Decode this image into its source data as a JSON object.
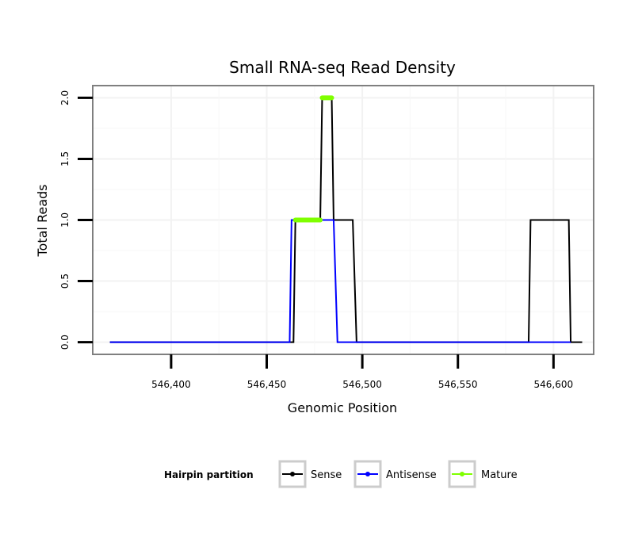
{
  "chart_data": {
    "type": "line",
    "title": "Small RNA-seq Read Density",
    "xlabel": "Genomic Position",
    "ylabel": "Total Reads",
    "xlim": [
      546359,
      546621
    ],
    "ylim": [
      -0.1,
      2.1
    ],
    "x_ticks": [
      546400,
      546450,
      546500,
      546550,
      546600
    ],
    "x_tick_labels": [
      "546,400",
      "546,450",
      "546,500",
      "546,550",
      "546,600"
    ],
    "y_ticks": [
      0.0,
      0.5,
      1.0,
      1.5,
      2.0
    ],
    "y_tick_labels": [
      "0.0",
      "0.5",
      "1.0",
      "1.5",
      "2.0"
    ],
    "grid": true,
    "legend": {
      "position": "bottom",
      "title": "Hairpin partition",
      "entries": [
        "Sense",
        "Antisense",
        "Mature"
      ]
    },
    "series": [
      {
        "name": "Sense",
        "color": "#000000",
        "x": [
          546368,
          546464,
          546465,
          546478,
          546479,
          546484,
          546485,
          546495,
          546497,
          546587,
          546588,
          546608,
          546609,
          546615
        ],
        "y": [
          0,
          0,
          1,
          1,
          2,
          2,
          1,
          1,
          0,
          0,
          1,
          1,
          0,
          0
        ]
      },
      {
        "name": "Antisense",
        "color": "#0000ff",
        "x": [
          546368,
          546462,
          546463,
          546485,
          546487,
          546609
        ],
        "y": [
          0,
          0,
          1,
          1,
          0,
          0
        ]
      },
      {
        "name": "Mature",
        "color": "#7fff00",
        "segments": [
          {
            "x": [
              546465,
              546478
            ],
            "y": [
              1,
              1
            ]
          },
          {
            "x": [
              546479,
              546484
            ],
            "y": [
              2,
              2
            ]
          }
        ]
      }
    ]
  }
}
